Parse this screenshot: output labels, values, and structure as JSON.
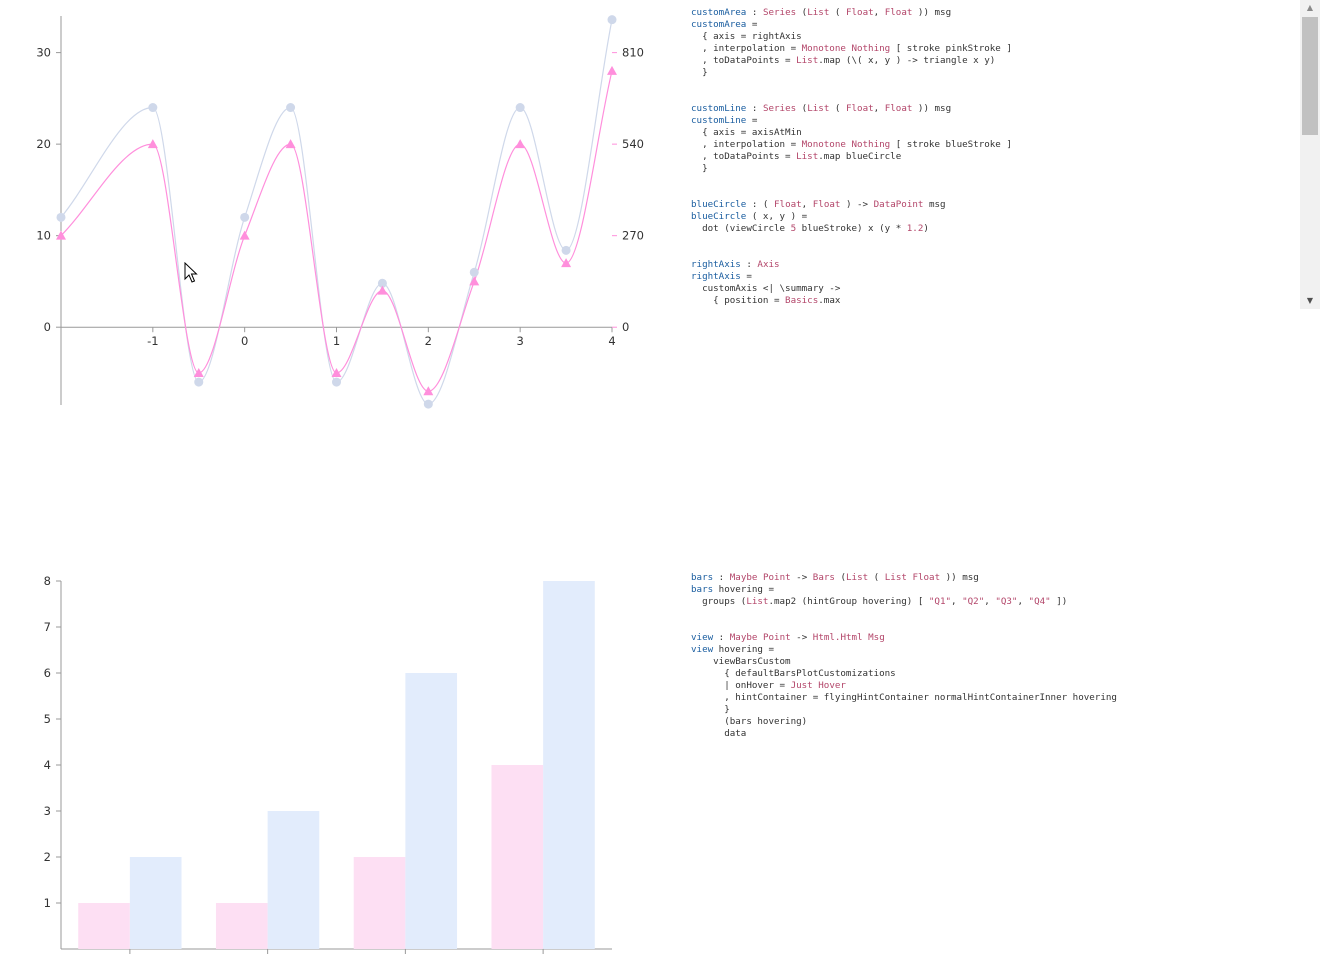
{
  "colors": {
    "pink_stroke": "#ff8fdc",
    "blue_stroke": "#cfd8ea",
    "pink_bar": "#fddff3",
    "blue_bar": "#e2ecfc",
    "axis": "#999999",
    "code_name": "#1b5ea0",
    "code_type": "#b3466a"
  },
  "chart_data": [
    {
      "type": "line",
      "title": "",
      "xlabel": "",
      "ylabel": "",
      "grid": false,
      "xlim": [
        -2,
        4
      ],
      "ylim": [
        -8.5,
        34
      ],
      "x_ticks": [
        -1,
        0,
        1,
        2,
        3,
        4
      ],
      "y_ticks": [
        0,
        10,
        20,
        30
      ],
      "right_axis": {
        "ticks": [
          0,
          270,
          540,
          810
        ],
        "range": [
          0,
          810
        ]
      },
      "x": [
        -2,
        -1,
        -0.5,
        0,
        0.5,
        1,
        1.5,
        2,
        2.5,
        3,
        3.5,
        4
      ],
      "series": [
        {
          "values": [
            10,
            20,
            -5,
            10,
            20,
            -5,
            4,
            -7,
            5,
            20,
            7,
            28
          ],
          "marker": "triangle",
          "color": "#ff8fdc"
        },
        {
          "values": [
            12,
            24,
            -6,
            12,
            24,
            -6,
            4.8,
            -8.4,
            6,
            24,
            8.4,
            33.6
          ],
          "marker": "circle",
          "color": "#cfd8ea"
        }
      ]
    },
    {
      "type": "bar",
      "title": "",
      "xlabel": "",
      "ylabel": "",
      "grid": false,
      "ylim": [
        0,
        8
      ],
      "y_ticks": [
        1,
        2,
        3,
        4,
        5,
        6,
        7,
        8
      ],
      "categories": [
        "",
        "",
        "",
        ""
      ],
      "series": [
        {
          "values": [
            1,
            1,
            2,
            4
          ],
          "color": "#fddff3"
        },
        {
          "values": [
            2,
            3,
            6,
            8
          ],
          "color": "#e2ecfc"
        }
      ]
    }
  ],
  "code_top": [
    [
      [
        [
          "name",
          "customArea"
        ],
        [
          "plain",
          " : "
        ],
        [
          "type",
          "Series"
        ],
        [
          "plain",
          " ("
        ],
        [
          "type",
          "List"
        ],
        [
          "plain",
          " ( "
        ],
        [
          "type",
          "Float"
        ],
        [
          "plain",
          ", "
        ],
        [
          "type",
          "Float"
        ],
        [
          "plain",
          " )) msg"
        ]
      ],
      [
        [
          "name",
          "customArea"
        ],
        [
          "plain",
          " ="
        ]
      ],
      [
        [
          "plain",
          "  { axis = rightAxis"
        ]
      ],
      [
        [
          "plain",
          "  , interpolation = "
        ],
        [
          "type",
          "Monotone"
        ],
        [
          "plain",
          " "
        ],
        [
          "type",
          "Nothing"
        ],
        [
          "plain",
          " [ stroke pinkStroke ]"
        ]
      ],
      [
        [
          "plain",
          "  , toDataPoints = "
        ],
        [
          "type",
          "List"
        ],
        [
          "plain",
          ".map (\\( x, y ) -> triangle x y)"
        ]
      ],
      [
        [
          "plain",
          "  }"
        ]
      ]
    ],
    [
      [
        [
          "name",
          "customLine"
        ],
        [
          "plain",
          " : "
        ],
        [
          "type",
          "Series"
        ],
        [
          "plain",
          " ("
        ],
        [
          "type",
          "List"
        ],
        [
          "plain",
          " ( "
        ],
        [
          "type",
          "Float"
        ],
        [
          "plain",
          ", "
        ],
        [
          "type",
          "Float"
        ],
        [
          "plain",
          " )) msg"
        ]
      ],
      [
        [
          "name",
          "customLine"
        ],
        [
          "plain",
          " ="
        ]
      ],
      [
        [
          "plain",
          "  { axis = axisAtMin"
        ]
      ],
      [
        [
          "plain",
          "  , interpolation = "
        ],
        [
          "type",
          "Monotone"
        ],
        [
          "plain",
          " "
        ],
        [
          "type",
          "Nothing"
        ],
        [
          "plain",
          " [ stroke blueStroke ]"
        ]
      ],
      [
        [
          "plain",
          "  , toDataPoints = "
        ],
        [
          "type",
          "List"
        ],
        [
          "plain",
          ".map blueCircle"
        ]
      ],
      [
        [
          "plain",
          "  }"
        ]
      ]
    ],
    [
      [
        [
          "name",
          "blueCircle"
        ],
        [
          "plain",
          " : ( "
        ],
        [
          "type",
          "Float"
        ],
        [
          "plain",
          ", "
        ],
        [
          "type",
          "Float"
        ],
        [
          "plain",
          " ) -> "
        ],
        [
          "type",
          "DataPoint"
        ],
        [
          "plain",
          " msg"
        ]
      ],
      [
        [
          "name",
          "blueCircle"
        ],
        [
          "plain",
          " ( x, y ) ="
        ]
      ],
      [
        [
          "plain",
          "  dot (viewCircle "
        ],
        [
          "num",
          "5"
        ],
        [
          "plain",
          " blueStroke) x (y * "
        ],
        [
          "num",
          "1.2"
        ],
        [
          "plain",
          ")"
        ]
      ]
    ],
    [
      [
        [
          "name",
          "rightAxis"
        ],
        [
          "plain",
          " : "
        ],
        [
          "type",
          "Axis"
        ]
      ],
      [
        [
          "name",
          "rightAxis"
        ],
        [
          "plain",
          " ="
        ]
      ],
      [
        [
          "plain",
          "  customAxis <| \\summary ->"
        ]
      ],
      [
        [
          "plain",
          "    { position = "
        ],
        [
          "type",
          "Basics"
        ],
        [
          "plain",
          ".max"
        ]
      ]
    ]
  ],
  "code_bottom": [
    [
      [
        [
          "name",
          "bars"
        ],
        [
          "plain",
          " : "
        ],
        [
          "type",
          "Maybe"
        ],
        [
          "plain",
          " "
        ],
        [
          "type",
          "Point"
        ],
        [
          "plain",
          " -> "
        ],
        [
          "type",
          "Bars"
        ],
        [
          "plain",
          " ("
        ],
        [
          "type",
          "List"
        ],
        [
          "plain",
          " ( "
        ],
        [
          "type",
          "List"
        ],
        [
          "plain",
          " "
        ],
        [
          "type",
          "Float"
        ],
        [
          "plain",
          " )) msg"
        ]
      ],
      [
        [
          "name",
          "bars"
        ],
        [
          "plain",
          " hovering ="
        ]
      ],
      [
        [
          "plain",
          "  groups ("
        ],
        [
          "type",
          "List"
        ],
        [
          "plain",
          ".map2 (hintGroup hovering) [ "
        ],
        [
          "type",
          "\"Q1\""
        ],
        [
          "plain",
          ", "
        ],
        [
          "type",
          "\"Q2\""
        ],
        [
          "plain",
          ", "
        ],
        [
          "type",
          "\"Q3\""
        ],
        [
          "plain",
          ", "
        ],
        [
          "type",
          "\"Q4\""
        ],
        [
          "plain",
          " ])"
        ]
      ]
    ],
    [
      [
        [
          "name",
          "view"
        ],
        [
          "plain",
          " : "
        ],
        [
          "type",
          "Maybe"
        ],
        [
          "plain",
          " "
        ],
        [
          "type",
          "Point"
        ],
        [
          "plain",
          " -> "
        ],
        [
          "type",
          "Html.Html"
        ],
        [
          "plain",
          " "
        ],
        [
          "type",
          "Msg"
        ]
      ],
      [
        [
          "name",
          "view"
        ],
        [
          "plain",
          " hovering ="
        ]
      ],
      [
        [
          "plain",
          "    viewBarsCustom"
        ]
      ],
      [
        [
          "plain",
          "      { defaultBarsPlotCustomizations"
        ]
      ],
      [
        [
          "plain",
          "      | onHover = "
        ],
        [
          "type",
          "Just"
        ],
        [
          "plain",
          " "
        ],
        [
          "type",
          "Hover"
        ]
      ],
      [
        [
          "plain",
          "      , hintContainer = flyingHintContainer normalHintContainerInner hovering"
        ]
      ],
      [
        [
          "plain",
          "      }"
        ]
      ],
      [
        [
          "plain",
          "      (bars hovering)"
        ]
      ],
      [
        [
          "plain",
          "      data"
        ]
      ]
    ]
  ],
  "scrollbar": {
    "up_icon": "▲",
    "down_icon": "▼"
  }
}
